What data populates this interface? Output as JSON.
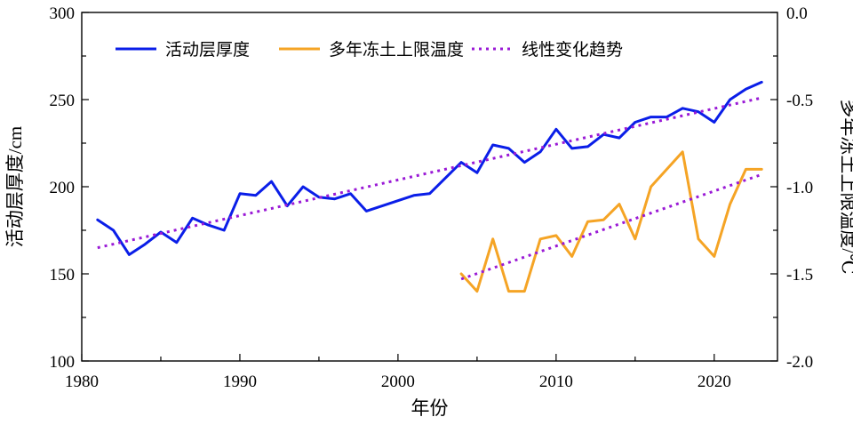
{
  "chart_data": {
    "type": "line",
    "title": "",
    "xlabel": "年份",
    "ylabel_left": "活动层厚度/cm",
    "ylabel_right": "多年冻土上限温度/℃",
    "xlim": [
      1980,
      2024
    ],
    "ylim_left": [
      100,
      300
    ],
    "ylim_right": [
      -2.0,
      0.0
    ],
    "x_ticks": [
      "1980",
      "1990",
      "2000",
      "2010",
      "2020"
    ],
    "y_ticks_left": [
      "100",
      "150",
      "200",
      "250",
      "300"
    ],
    "y_ticks_right": [
      "-2.0",
      "-1.5",
      "-1.0",
      "-0.5",
      "0.0"
    ],
    "grid": false,
    "legend_position": "top",
    "series": [
      {
        "name": "活动层厚度",
        "axis": "left",
        "color": "#0a1ee8",
        "style": "solid",
        "x": [
          1981,
          1982,
          1983,
          1984,
          1985,
          1986,
          1987,
          1988,
          1989,
          1990,
          1991,
          1992,
          1993,
          1994,
          1995,
          1996,
          1997,
          1998,
          2001,
          2002,
          2003,
          2004,
          2005,
          2006,
          2007,
          2008,
          2009,
          2010,
          2011,
          2012,
          2013,
          2014,
          2015,
          2016,
          2017,
          2018,
          2019,
          2020,
          2021,
          2022,
          2023
        ],
        "y": [
          181,
          175,
          161,
          167,
          174,
          168,
          182,
          178,
          175,
          196,
          195,
          203,
          189,
          200,
          194,
          193,
          196,
          186,
          195,
          196,
          205,
          214,
          208,
          224,
          222,
          214,
          220,
          233,
          222,
          223,
          230,
          228,
          237,
          240,
          240,
          245,
          243,
          237,
          250,
          256,
          260
        ]
      },
      {
        "name": "多年冻土上限温度",
        "axis": "right",
        "color": "#f5a425",
        "style": "solid",
        "x": [
          2004,
          2005,
          2006,
          2007,
          2008,
          2009,
          2010,
          2011,
          2012,
          2013,
          2014,
          2015,
          2016,
          2017,
          2018,
          2019,
          2020,
          2021,
          2022,
          2023
        ],
        "y": [
          -1.5,
          -1.6,
          -1.3,
          -1.6,
          -1.6,
          -1.3,
          -1.28,
          -1.4,
          -1.2,
          -1.19,
          -1.1,
          -1.3,
          -1.0,
          -0.9,
          -0.8,
          -1.3,
          -1.4,
          -1.1,
          -0.9,
          -0.9
        ]
      },
      {
        "name": "线性变化趋势",
        "color": "#9a1ad6",
        "style": "dotted",
        "segments": [
          {
            "axis": "left",
            "x": [
              1981,
              2023
            ],
            "y": [
              165,
              251
            ]
          },
          {
            "axis": "right",
            "x": [
              2004,
              2023
            ],
            "y": [
              -1.53,
              -0.93
            ]
          }
        ]
      }
    ]
  }
}
